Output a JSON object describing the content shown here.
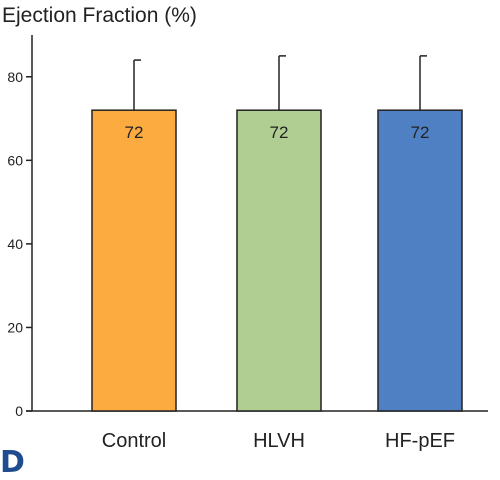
{
  "panel_label": "D",
  "chart_data": {
    "type": "bar",
    "title": "Ejection Fraction (%)",
    "categories": [
      "Control",
      "HLVH",
      "HF-pEF"
    ],
    "values": [
      72,
      72,
      72
    ],
    "error_upper": [
      84,
      85,
      85
    ],
    "value_labels": [
      "72",
      "72",
      "72"
    ],
    "bar_colors": [
      "#fbab40",
      "#b0cd92",
      "#4f80c3"
    ],
    "ylim": [
      0,
      90
    ],
    "yticks": [
      0,
      20,
      40,
      60,
      80
    ],
    "xlabel": "",
    "ylabel": "",
    "grid": false,
    "legend": "none"
  }
}
